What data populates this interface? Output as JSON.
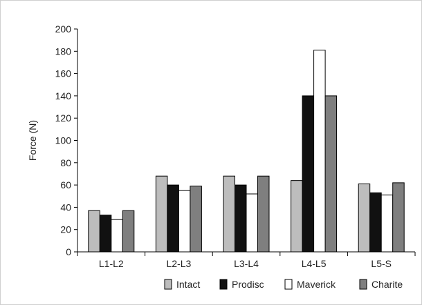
{
  "chart_data": {
    "type": "bar",
    "title": "",
    "xlabel": "",
    "ylabel": "Force (N)",
    "ylim": [
      0,
      200
    ],
    "yticks": [
      0,
      20,
      40,
      60,
      80,
      100,
      120,
      140,
      160,
      180,
      200
    ],
    "grid": false,
    "legend": "bottom-right",
    "categories": [
      "L1-L2",
      "L2-L3",
      "L3-L4",
      "L4-L5",
      "L5-S"
    ],
    "series": [
      {
        "name": "Intact",
        "color": "#bdbdbd",
        "values": [
          37,
          68,
          68,
          64,
          61
        ]
      },
      {
        "name": "Prodisc",
        "color": "#111111",
        "values": [
          33,
          60,
          60,
          140,
          53
        ]
      },
      {
        "name": "Maverick",
        "color": "#ffffff",
        "values": [
          29,
          55,
          52,
          181,
          51
        ]
      },
      {
        "name": "Charite",
        "color": "#7f7f7f",
        "values": [
          37,
          59,
          68,
          140,
          62
        ]
      }
    ]
  }
}
